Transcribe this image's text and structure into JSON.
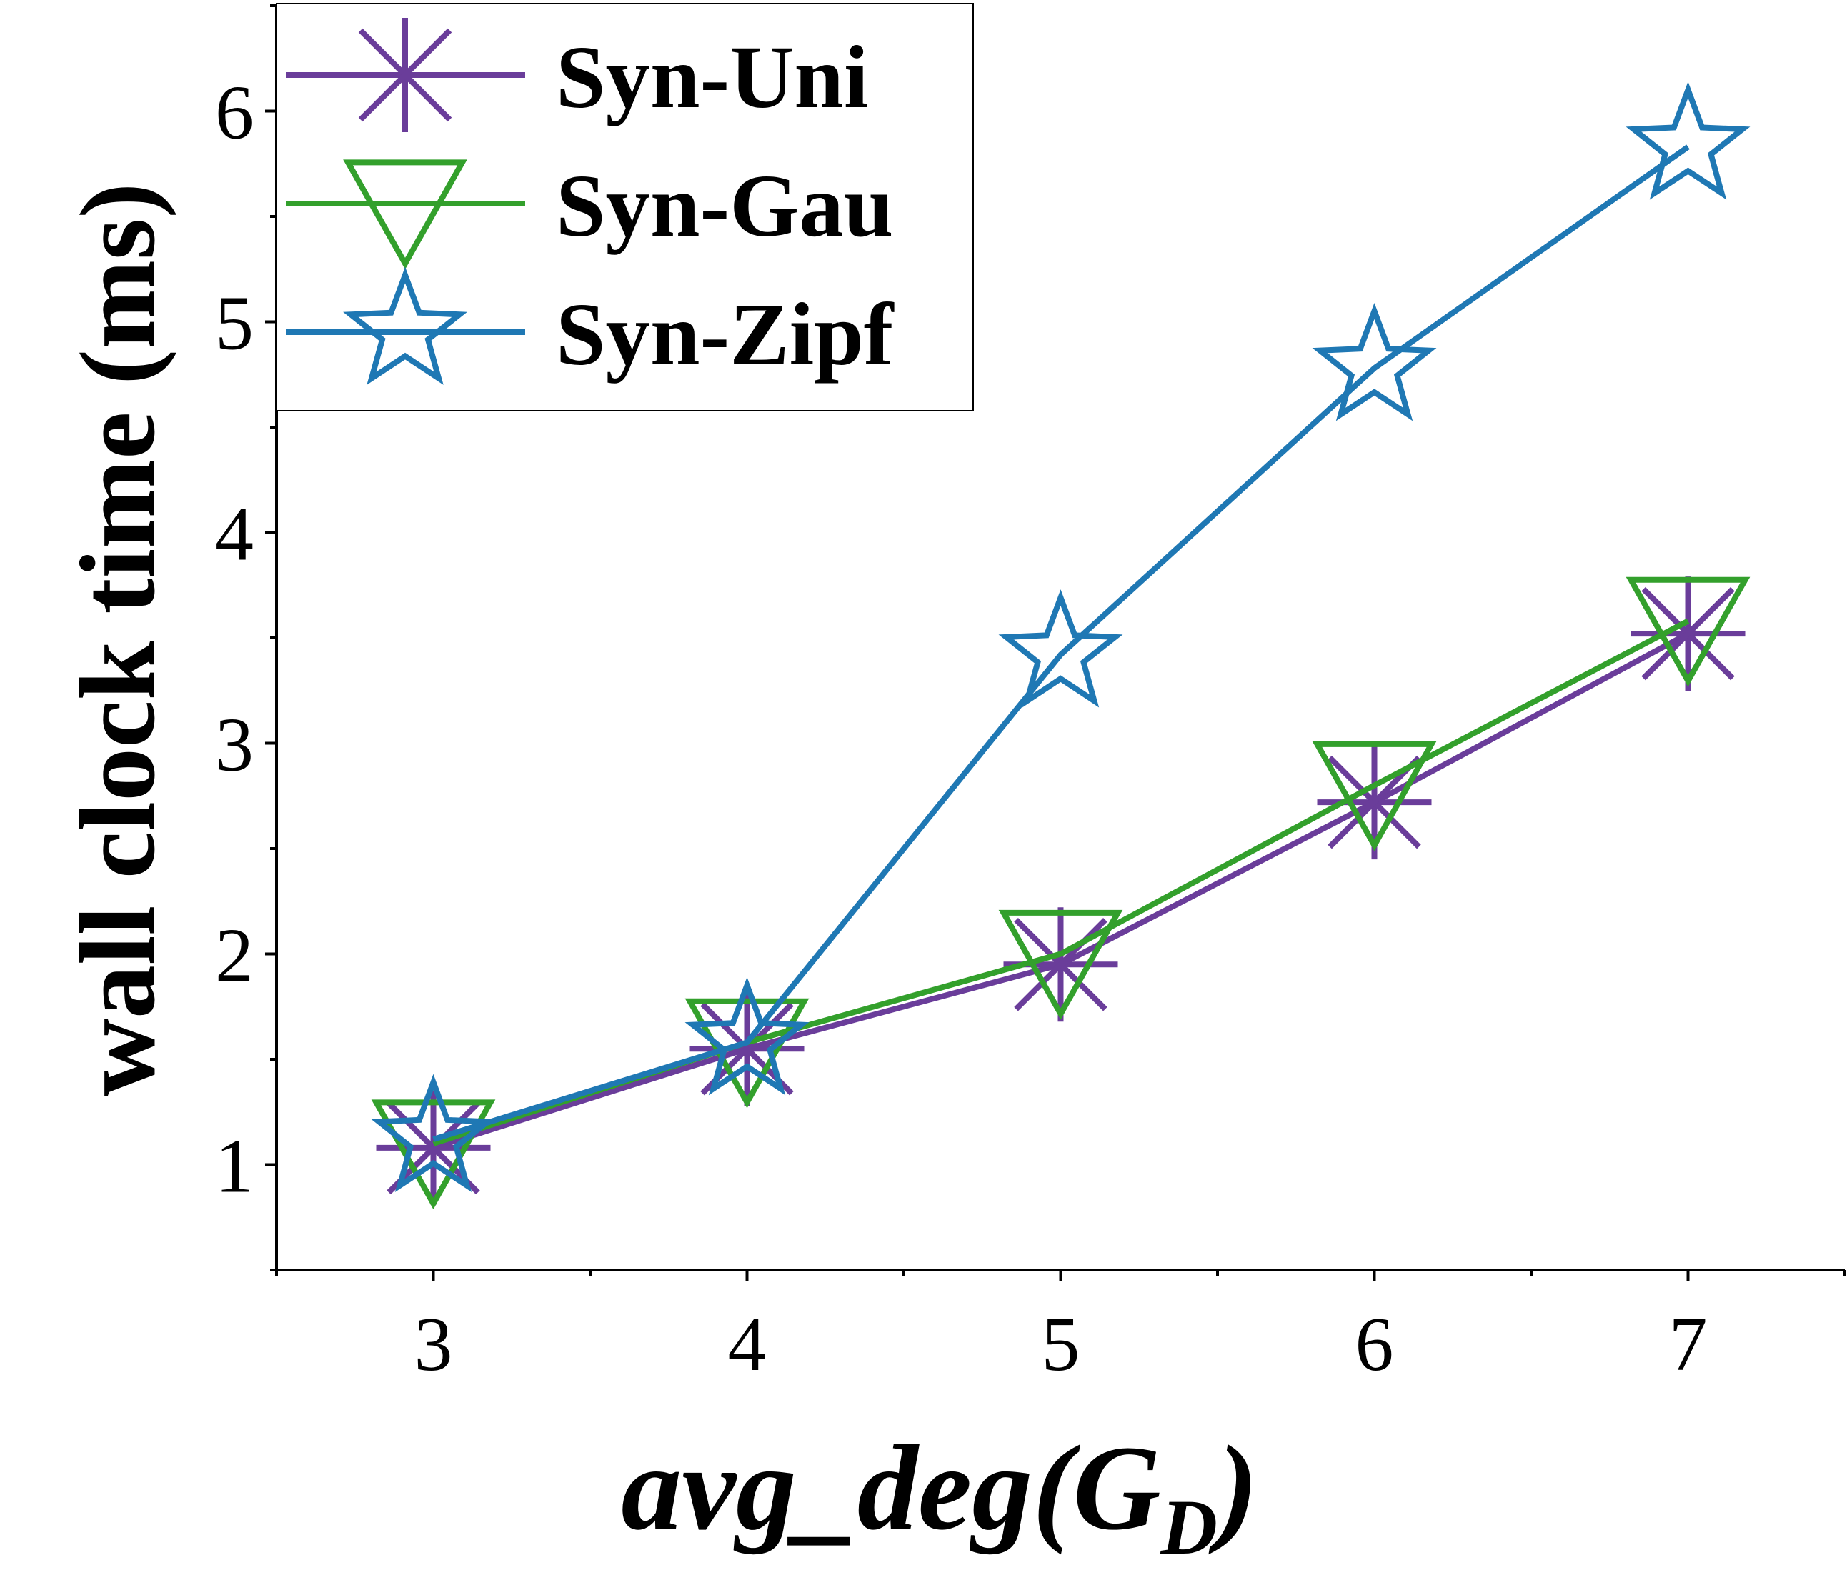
{
  "chart_data": {
    "type": "line",
    "title": "",
    "xlabel": "avg_deg(G",
    "xlabel_subscript": "D",
    "xlabel_close": ")",
    "ylabel": "wall clock time (ms)",
    "x": [
      3,
      4,
      5,
      6,
      7
    ],
    "xlim": [
      2.5,
      7.5
    ],
    "ylim": [
      0.5,
      6.5
    ],
    "xticks": [
      "3",
      "4",
      "5",
      "6",
      "7"
    ],
    "yticks": [
      "1",
      "2",
      "3",
      "4",
      "5",
      "6"
    ],
    "legend_position": "top-left",
    "series": [
      {
        "name": "Syn-Uni",
        "color": "#6a3d9a",
        "marker": "asterisk",
        "values": [
          1.08,
          1.55,
          1.95,
          2.72,
          3.52
        ]
      },
      {
        "name": "Syn-Gau",
        "color": "#33a02c",
        "marker": "triangle-down",
        "values": [
          1.1,
          1.58,
          2.0,
          2.8,
          3.58
        ]
      },
      {
        "name": "Syn-Zipf",
        "color": "#1f78b4",
        "marker": "star",
        "values": [
          1.12,
          1.58,
          3.42,
          4.78,
          5.83
        ]
      }
    ]
  }
}
